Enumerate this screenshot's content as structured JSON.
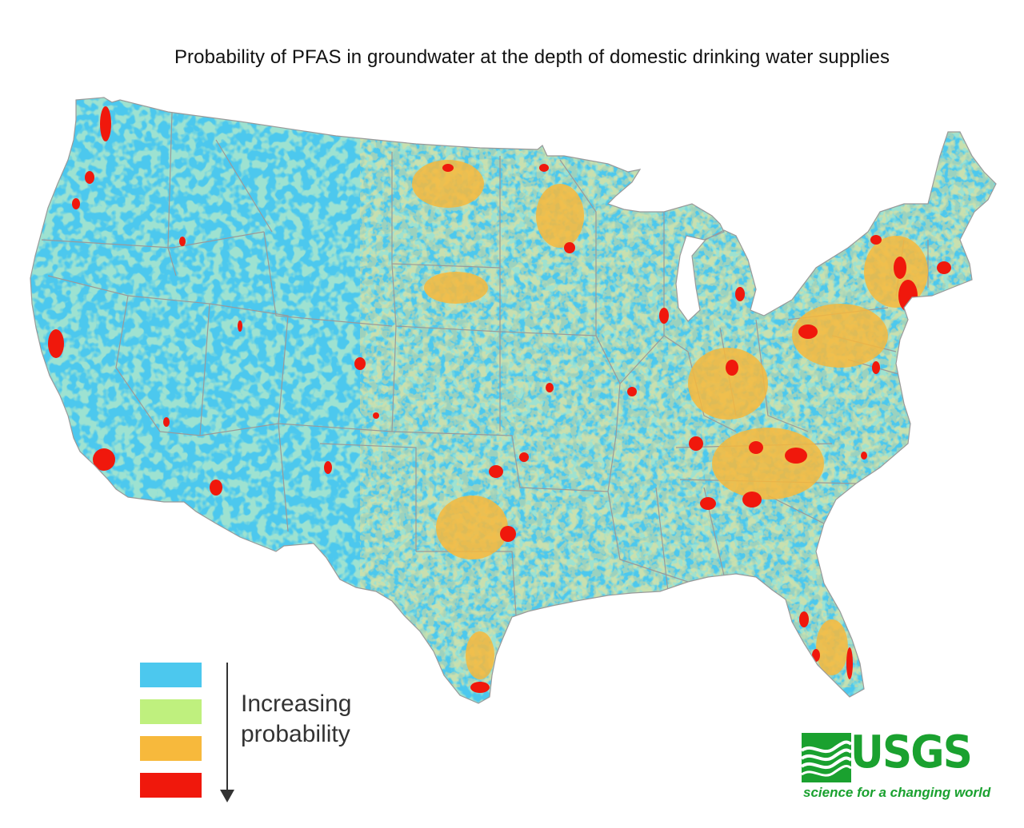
{
  "title": "Probability of PFAS in groundwater at the depth of domestic drinking water supplies",
  "map": {
    "region": "Conterminous United States",
    "colors": {
      "background": "#ffffff",
      "base": "#4cc8ee",
      "border": "#9a9a9a",
      "low": "#4cc8ee",
      "moderate": "#bff07e",
      "high": "#f7b93c",
      "highest": "#f0180c"
    }
  },
  "legend": {
    "classes": [
      {
        "color": "#4cc8ee"
      },
      {
        "color": "#bff07e"
      },
      {
        "color": "#f7b93c"
      },
      {
        "color": "#f0180c"
      }
    ],
    "label_line1": "Increasing",
    "label_line2": "probability"
  },
  "logo": {
    "word": "USGS",
    "tagline": "science for a changing world",
    "color": "#1aa12f"
  }
}
